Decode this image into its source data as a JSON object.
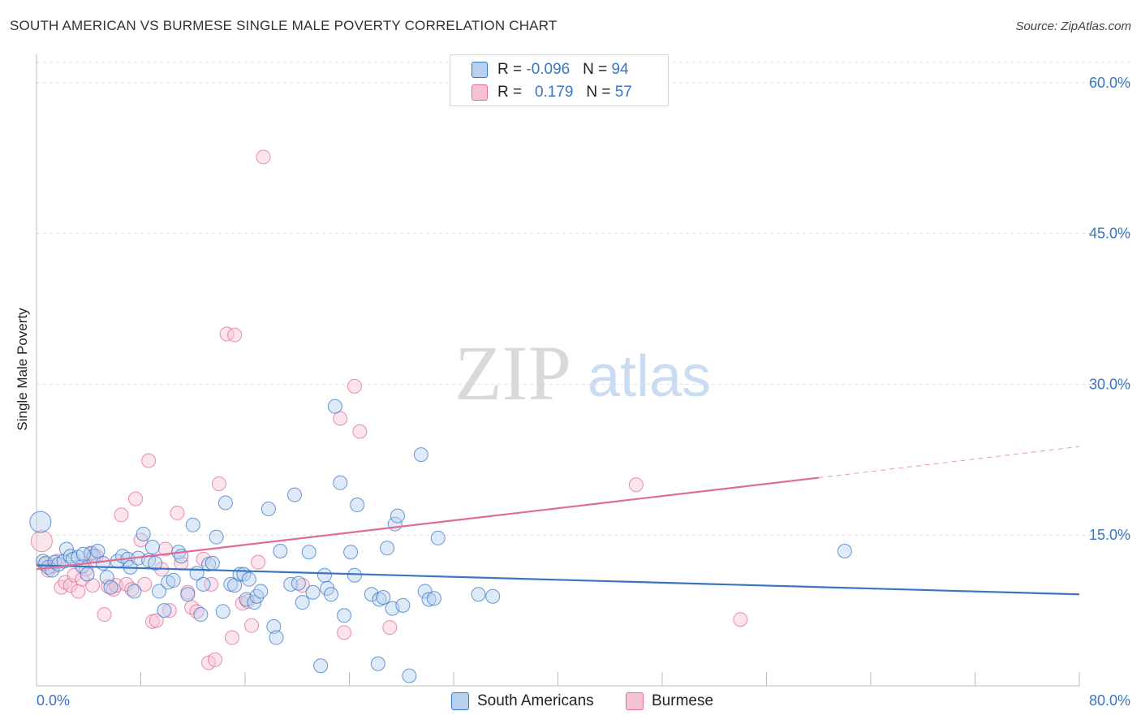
{
  "title": "SOUTH AMERICAN VS BURMESE SINGLE MALE POVERTY CORRELATION CHART",
  "source": "Source: ZipAtlas.com",
  "watermark": {
    "zip": "ZIP",
    "atlas": "atlas"
  },
  "legend_top": {
    "rows": [
      {
        "r_label": "R = ",
        "r_value": "-0.096",
        "n_label": "N = ",
        "n_value": "94"
      },
      {
        "r_label": "R = ",
        "r_value": "0.179",
        "n_label": "N = ",
        "n_value": "57"
      }
    ]
  },
  "legend_bottom": {
    "series1": "South Americans",
    "series2": "Burmese"
  },
  "colors": {
    "blue": "#3a75c4",
    "blue_fill": "#b7d0f0",
    "pink": "#e06b95",
    "pink_fill": "#f6c3d4",
    "grid": "#dddddd"
  },
  "chart_data": {
    "type": "scatter",
    "title": "SOUTH AMERICAN VS BURMESE SINGLE MALE POVERTY CORRELATION CHART",
    "xlabel": "",
    "ylabel": "Single Male Poverty",
    "xlim": [
      0,
      80
    ],
    "ylim": [
      0,
      62
    ],
    "x_tick_labels": [
      {
        "value": 0,
        "label": "0.0%"
      },
      {
        "value": 80,
        "label": "80.0%"
      }
    ],
    "y_ticks": [
      {
        "value": 15,
        "label": "15.0%"
      },
      {
        "value": 30,
        "label": "30.0%"
      },
      {
        "value": 45,
        "label": "45.0%"
      },
      {
        "value": 60,
        "label": "60.0%"
      }
    ],
    "grid": "horizontal dashed",
    "series": [
      {
        "name": "South Americans",
        "r": -0.096,
        "n": 94,
        "trend": {
          "x0": 0,
          "y0": 12.0,
          "x1": 80,
          "y1": 9.1
        },
        "points": [
          [
            0.3,
            16.3
          ],
          [
            0.5,
            12.4
          ],
          [
            0.7,
            12.2
          ],
          [
            0.9,
            11.8
          ],
          [
            1.2,
            11.5
          ],
          [
            1.4,
            12.3
          ],
          [
            1.7,
            12.1
          ],
          [
            2.1,
            12.4
          ],
          [
            2.3,
            13.6
          ],
          [
            2.6,
            12.9
          ],
          [
            2.8,
            12.6
          ],
          [
            3.2,
            12.8
          ],
          [
            3.5,
            11.9
          ],
          [
            3.9,
            11.1
          ],
          [
            4.2,
            13.2
          ],
          [
            4.4,
            12.9
          ],
          [
            4.7,
            13.4
          ],
          [
            5.1,
            12.2
          ],
          [
            5.4,
            10.8
          ],
          [
            5.7,
            9.8
          ],
          [
            6.2,
            12.4
          ],
          [
            6.6,
            12.9
          ],
          [
            7.0,
            12.6
          ],
          [
            7.2,
            11.8
          ],
          [
            7.5,
            9.4
          ],
          [
            7.8,
            12.7
          ],
          [
            8.2,
            15.1
          ],
          [
            8.6,
            12.5
          ],
          [
            8.9,
            13.8
          ],
          [
            9.1,
            12.2
          ],
          [
            9.4,
            9.4
          ],
          [
            9.8,
            7.5
          ],
          [
            10.1,
            10.3
          ],
          [
            10.5,
            10.5
          ],
          [
            10.9,
            13.3
          ],
          [
            11.1,
            12.9
          ],
          [
            11.6,
            9.1
          ],
          [
            12.0,
            16.0
          ],
          [
            12.3,
            11.2
          ],
          [
            12.6,
            7.1
          ],
          [
            12.8,
            10.1
          ],
          [
            13.2,
            12.1
          ],
          [
            13.5,
            12.2
          ],
          [
            13.8,
            14.8
          ],
          [
            14.3,
            7.4
          ],
          [
            14.5,
            18.2
          ],
          [
            14.9,
            10.1
          ],
          [
            15.2,
            10.0
          ],
          [
            15.6,
            11.1
          ],
          [
            15.9,
            11.1
          ],
          [
            16.1,
            8.6
          ],
          [
            16.3,
            10.6
          ],
          [
            16.7,
            8.3
          ],
          [
            16.9,
            8.9
          ],
          [
            17.2,
            9.4
          ],
          [
            17.8,
            17.6
          ],
          [
            18.2,
            5.9
          ],
          [
            18.4,
            4.8
          ],
          [
            18.7,
            13.4
          ],
          [
            19.5,
            10.1
          ],
          [
            19.8,
            19.0
          ],
          [
            20.1,
            10.2
          ],
          [
            20.4,
            8.3
          ],
          [
            20.9,
            13.3
          ],
          [
            21.2,
            9.3
          ],
          [
            21.8,
            2.0
          ],
          [
            22.1,
            11.0
          ],
          [
            22.3,
            9.7
          ],
          [
            22.6,
            9.1
          ],
          [
            22.9,
            27.8
          ],
          [
            23.3,
            20.2
          ],
          [
            23.6,
            7.0
          ],
          [
            24.1,
            13.3
          ],
          [
            24.4,
            11.0
          ],
          [
            24.6,
            18.0
          ],
          [
            25.7,
            9.1
          ],
          [
            26.2,
            2.2
          ],
          [
            26.3,
            8.6
          ],
          [
            26.6,
            8.8
          ],
          [
            26.9,
            13.7
          ],
          [
            27.3,
            7.7
          ],
          [
            27.5,
            16.1
          ],
          [
            27.7,
            16.9
          ],
          [
            28.1,
            8.0
          ],
          [
            28.6,
            1.0
          ],
          [
            29.5,
            23.0
          ],
          [
            29.8,
            9.4
          ],
          [
            30.1,
            8.6
          ],
          [
            30.5,
            8.7
          ],
          [
            30.8,
            14.7
          ],
          [
            33.9,
            9.1
          ],
          [
            35.0,
            8.9
          ],
          [
            62.0,
            13.4
          ],
          [
            3.6,
            13.1
          ]
        ]
      },
      {
        "name": "Burmese",
        "r": 0.179,
        "n": 57,
        "trend": {
          "x0": 0,
          "y0": 11.6,
          "x1": 60,
          "y1": 20.7,
          "dash_to_x": 80,
          "dash_to_y": 23.8
        },
        "points": [
          [
            0.4,
            14.4
          ],
          [
            0.6,
            12.1
          ],
          [
            0.9,
            11.5
          ],
          [
            1.3,
            11.9
          ],
          [
            1.6,
            12.4
          ],
          [
            1.9,
            9.8
          ],
          [
            2.2,
            10.3
          ],
          [
            2.6,
            10.0
          ],
          [
            2.9,
            11.0
          ],
          [
            3.2,
            9.4
          ],
          [
            3.5,
            10.6
          ],
          [
            3.8,
            11.6
          ],
          [
            4.1,
            13.1
          ],
          [
            4.3,
            10.0
          ],
          [
            4.6,
            12.9
          ],
          [
            5.2,
            7.1
          ],
          [
            5.5,
            9.9
          ],
          [
            5.9,
            9.6
          ],
          [
            6.1,
            10.0
          ],
          [
            6.5,
            17.0
          ],
          [
            6.9,
            10.1
          ],
          [
            7.3,
            9.6
          ],
          [
            7.6,
            18.6
          ],
          [
            8.0,
            14.5
          ],
          [
            8.3,
            10.1
          ],
          [
            8.6,
            22.4
          ],
          [
            8.9,
            6.4
          ],
          [
            9.2,
            6.5
          ],
          [
            9.6,
            11.6
          ],
          [
            9.9,
            13.6
          ],
          [
            10.2,
            7.5
          ],
          [
            10.8,
            17.2
          ],
          [
            11.1,
            12.2
          ],
          [
            11.6,
            9.3
          ],
          [
            11.9,
            7.8
          ],
          [
            12.3,
            7.4
          ],
          [
            12.8,
            12.6
          ],
          [
            13.2,
            2.3
          ],
          [
            13.4,
            10.1
          ],
          [
            13.7,
            2.6
          ],
          [
            14.0,
            20.1
          ],
          [
            14.6,
            35.0
          ],
          [
            15.0,
            4.8
          ],
          [
            15.2,
            34.9
          ],
          [
            15.8,
            8.2
          ],
          [
            16.2,
            8.4
          ],
          [
            16.5,
            6.0
          ],
          [
            17.0,
            12.3
          ],
          [
            17.4,
            52.6
          ],
          [
            20.4,
            10.0
          ],
          [
            23.3,
            26.6
          ],
          [
            23.6,
            5.3
          ],
          [
            24.4,
            29.8
          ],
          [
            24.8,
            25.3
          ],
          [
            27.1,
            5.8
          ],
          [
            46.0,
            20.0
          ],
          [
            54.0,
            6.6
          ]
        ]
      }
    ]
  }
}
